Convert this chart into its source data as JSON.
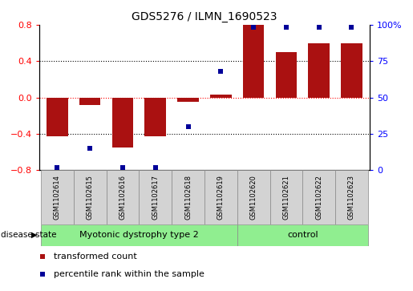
{
  "title": "GDS5276 / ILMN_1690523",
  "categories": [
    "GSM1102614",
    "GSM1102615",
    "GSM1102616",
    "GSM1102617",
    "GSM1102618",
    "GSM1102619",
    "GSM1102620",
    "GSM1102621",
    "GSM1102622",
    "GSM1102623"
  ],
  "red_bars": [
    -0.43,
    -0.08,
    -0.55,
    -0.43,
    -0.05,
    0.03,
    0.8,
    0.5,
    0.6,
    0.6
  ],
  "blue_dots_pct": [
    2,
    15,
    2,
    2,
    30,
    68,
    98,
    98,
    98,
    98
  ],
  "disease_groups": [
    {
      "label": "Myotonic dystrophy type 2",
      "count": 6,
      "color": "#90EE90"
    },
    {
      "label": "control",
      "count": 4,
      "color": "#90EE90"
    }
  ],
  "ylim_left": [
    -0.8,
    0.8
  ],
  "ylim_right": [
    0,
    100
  ],
  "yticks_left": [
    -0.8,
    -0.4,
    0.0,
    0.4,
    0.8
  ],
  "yticks_right": [
    0,
    25,
    50,
    75,
    100
  ],
  "ytick_labels_right": [
    "0",
    "25",
    "50",
    "75",
    "100%"
  ],
  "bar_color": "#AA1111",
  "dot_color": "#000099",
  "legend_red_label": "transformed count",
  "legend_blue_label": "percentile rank within the sample",
  "disease_state_label": "disease state",
  "label_box_color": "#D3D3D3",
  "label_box_edge": "#888888",
  "hline_dot_color": "black",
  "hline_zero_color": "red",
  "title_fontsize": 10,
  "tick_fontsize": 8,
  "legend_fontsize": 8,
  "cat_fontsize": 6,
  "disease_fontsize": 8
}
